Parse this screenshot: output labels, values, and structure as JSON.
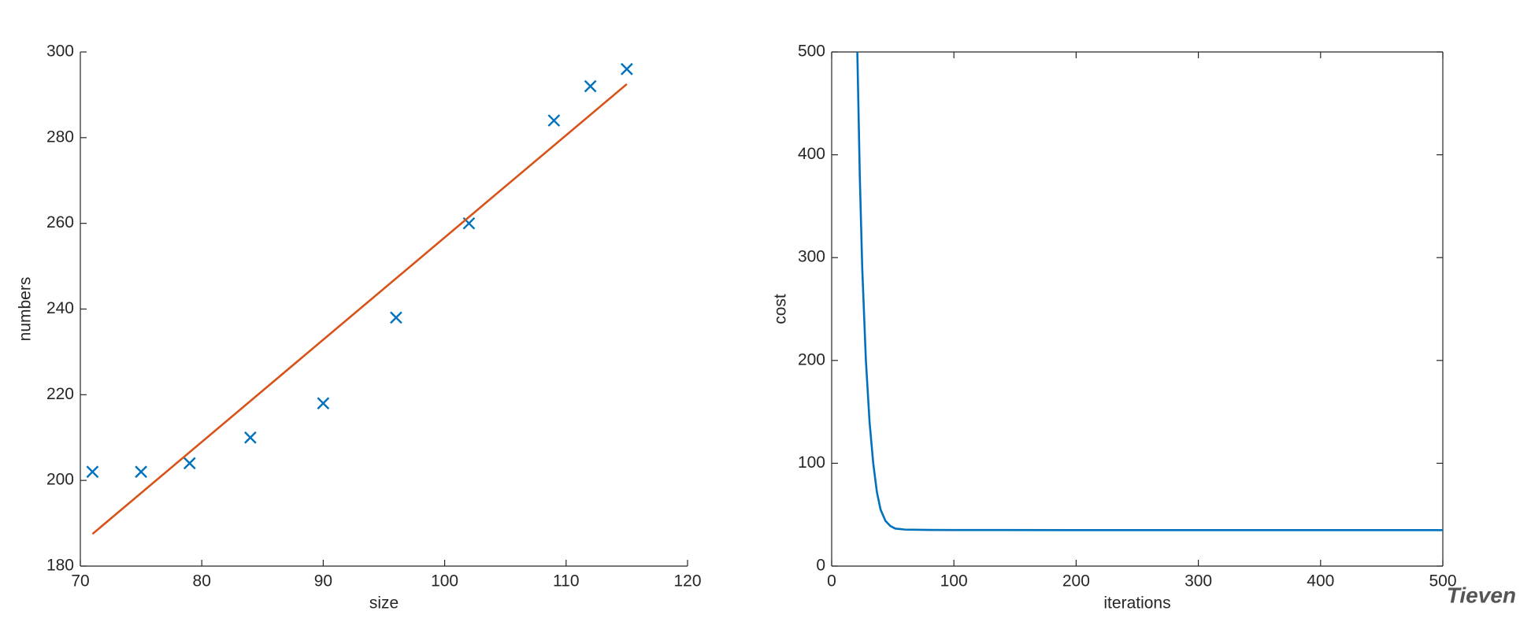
{
  "chart_data": [
    {
      "type": "scatter",
      "xlabel": "size",
      "ylabel": "numbers",
      "xlim": [
        70,
        120
      ],
      "xticks": [
        70,
        80,
        90,
        100,
        110,
        120
      ],
      "ylim": [
        180,
        300
      ],
      "yticks": [
        180,
        200,
        220,
        240,
        260,
        280,
        300
      ],
      "box": false,
      "series": [
        {
          "style": "x",
          "color": "#0072bd",
          "x": [
            71,
            75,
            79,
            84,
            90,
            96,
            102,
            109,
            112,
            115
          ],
          "values": [
            202,
            202,
            204,
            210,
            218,
            238,
            260,
            284,
            292,
            296
          ]
        },
        {
          "style": "line",
          "color": "#d95319",
          "x": [
            71,
            115
          ],
          "values": [
            187.5,
            292.5
          ]
        }
      ]
    },
    {
      "type": "line",
      "xlabel": "iterations",
      "ylabel": "cost",
      "xlim": [
        0,
        500
      ],
      "xticks": [
        0,
        100,
        200,
        300,
        400,
        500
      ],
      "ylim": [
        0,
        500
      ],
      "yticks": [
        0,
        100,
        200,
        300,
        400,
        500
      ],
      "box": true,
      "series": [
        {
          "style": "line",
          "color": "#0072bd",
          "x": [
            21,
            23,
            25,
            28,
            31,
            34,
            37,
            40,
            44,
            48,
            52,
            60,
            80,
            100,
            200,
            300,
            400,
            500
          ],
          "values": [
            500,
            380,
            290,
            200,
            140,
            100,
            72,
            55,
            44,
            39,
            36.5,
            35.5,
            35.2,
            35.1,
            35,
            35,
            35,
            35
          ]
        }
      ]
    }
  ],
  "watermark": "Tieven"
}
